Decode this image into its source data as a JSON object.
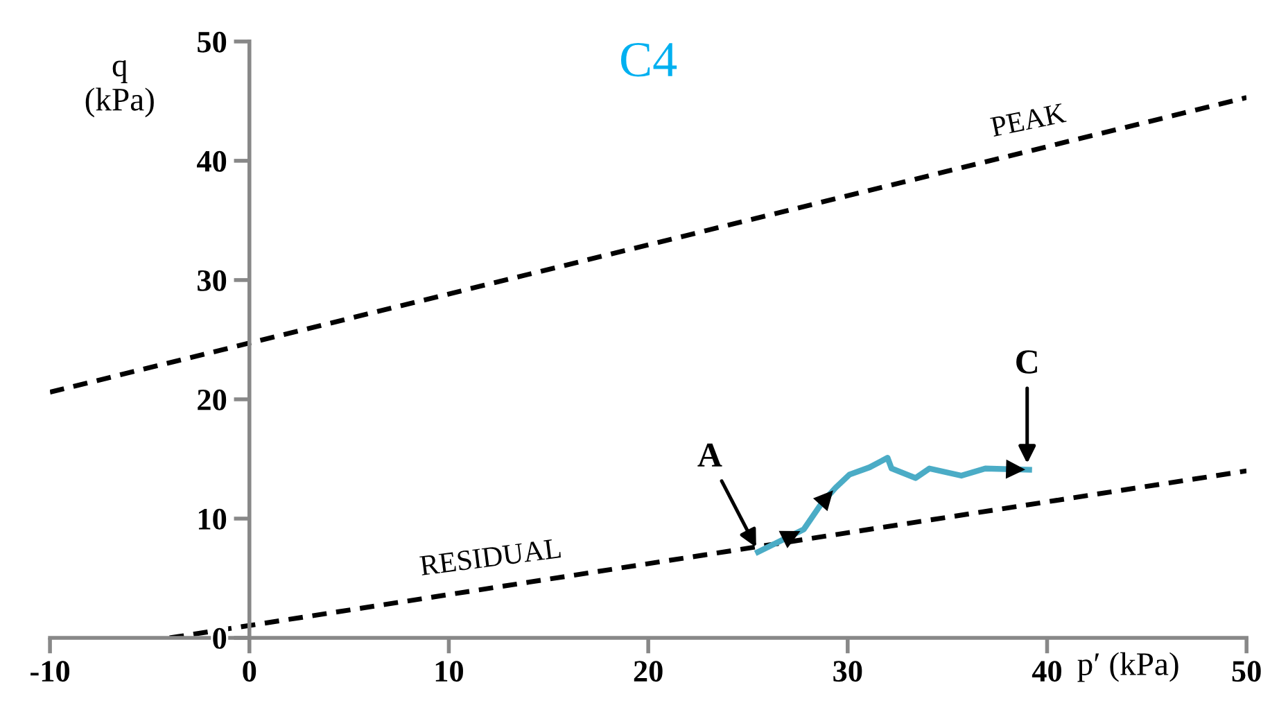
{
  "chart_data": {
    "type": "line",
    "title": "C4",
    "xlabel": "p′ (kPa)",
    "ylabel": "q\n(kPa)",
    "xlim": [
      -10,
      50
    ],
    "ylim": [
      0,
      50
    ],
    "xticks": [
      -10,
      0,
      10,
      20,
      30,
      40,
      50
    ],
    "yticks": [
      0,
      10,
      20,
      30,
      40,
      50
    ],
    "grid": false,
    "legend": false,
    "series": [
      {
        "name": "PEAK",
        "color": "#000000",
        "line_style": "dashed",
        "x": [
          -10,
          50
        ],
        "values": [
          20.6,
          45.3
        ]
      },
      {
        "name": "RESIDUAL",
        "color": "#000000",
        "line_style": "dashed",
        "x": [
          -4,
          50
        ],
        "values": [
          0,
          14
        ]
      },
      {
        "color": "#4bacc6",
        "line_style": "solid",
        "x": [
          25.5,
          27.8,
          28.7,
          29.4,
          30.1,
          31.1,
          32.0,
          32.2,
          33.4,
          34.1,
          35.7,
          36.9,
          39.1
        ],
        "values": [
          7.2,
          9.1,
          11.3,
          12.6,
          13.7,
          14.3,
          15.1,
          14.2,
          13.4,
          14.2,
          13.6,
          14.2,
          14.1
        ]
      }
    ],
    "annotations": [
      {
        "text": "A",
        "x": 25.5,
        "y": 7.3
      },
      {
        "text": "C",
        "x": 39,
        "y": 14.3
      }
    ]
  }
}
